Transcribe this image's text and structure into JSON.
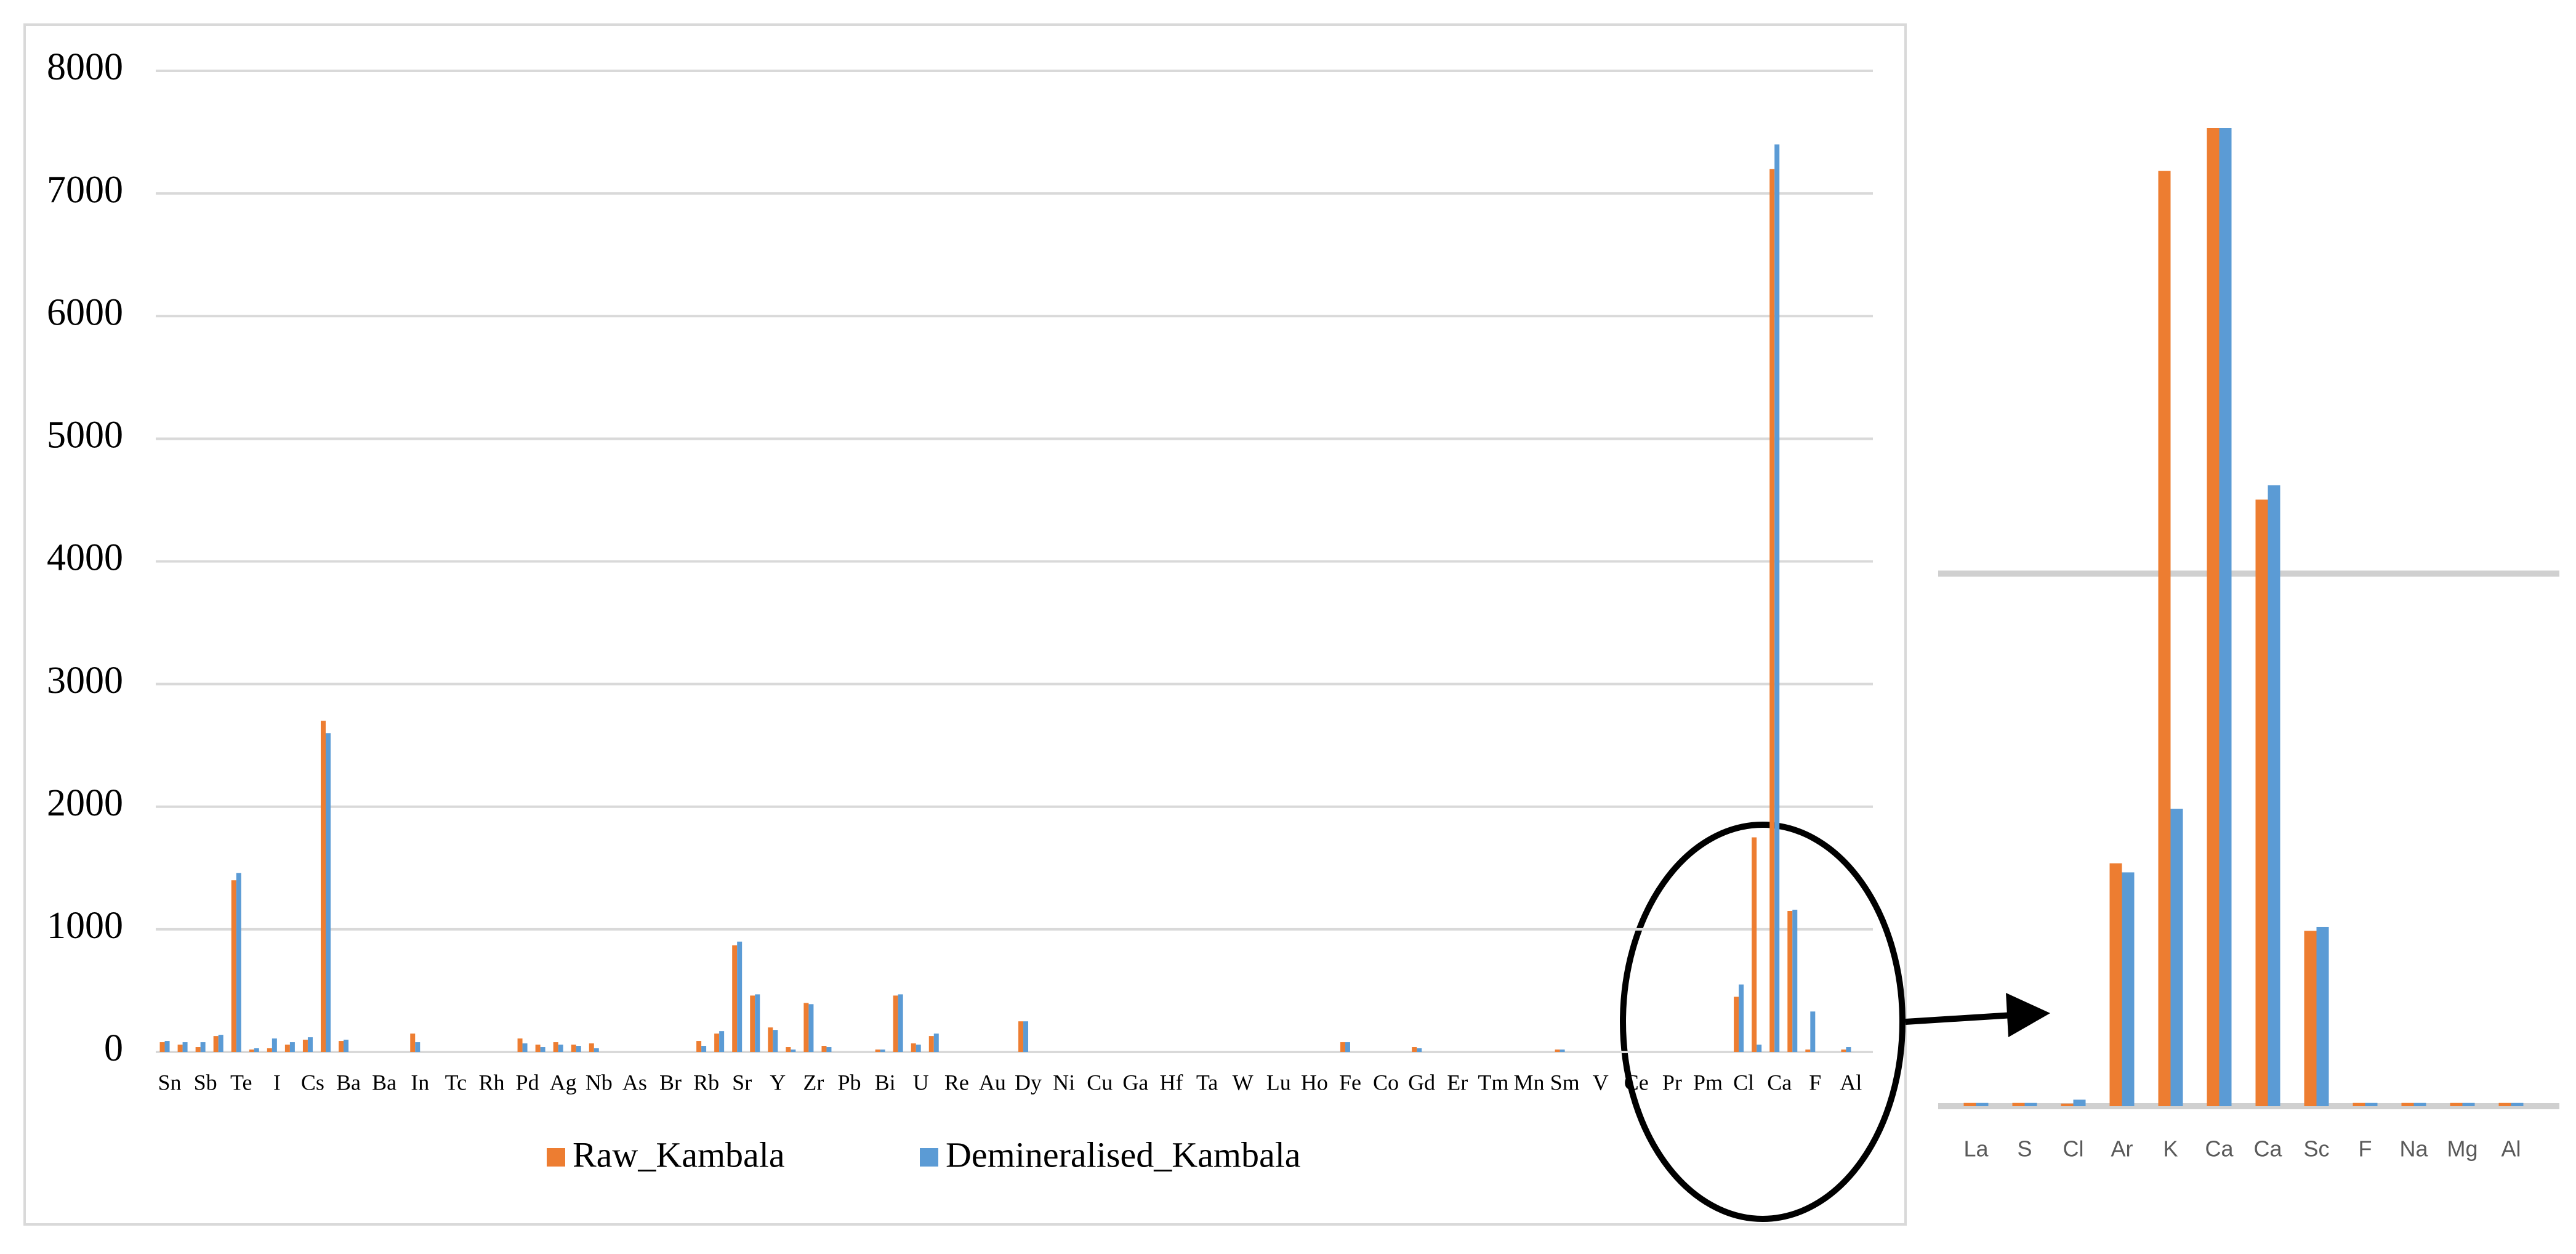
{
  "chart_data": [
    {
      "type": "bar",
      "categories": [
        "Sn",
        null,
        "Sb",
        null,
        "Te",
        null,
        "I",
        null,
        "Cs",
        null,
        "Ba",
        null,
        "Ba",
        null,
        "In",
        null,
        "Tc",
        null,
        "Rh",
        null,
        "Pd",
        null,
        "Ag",
        null,
        "Nb",
        null,
        "As",
        null,
        "Br",
        null,
        "Rb",
        null,
        "Sr",
        null,
        "Y",
        null,
        "Zr",
        null,
        "Pb",
        null,
        "Bi",
        null,
        "U",
        null,
        "Re",
        null,
        "Au",
        null,
        "Dy",
        null,
        "Ni",
        null,
        "Cu",
        null,
        "Ga",
        null,
        "Hf",
        null,
        "Ta",
        null,
        "W",
        null,
        "Lu",
        null,
        "Ho",
        null,
        "Fe",
        null,
        "Co",
        null,
        "Gd",
        null,
        "Er",
        null,
        "Tm",
        null,
        "Mn",
        null,
        "Sm",
        null,
        "V",
        null,
        "Ce",
        null,
        "Pr",
        null,
        "Pm",
        null,
        "Cl",
        null,
        "Ca",
        null,
        "F",
        null,
        "Al",
        null
      ],
      "series": [
        {
          "name": "Raw_Kambala",
          "color": "#ed7d31",
          "values": [
            80,
            60,
            40,
            130,
            1400,
            20,
            30,
            60,
            100,
            2700,
            90,
            0,
            0,
            0,
            150,
            0,
            0,
            0,
            0,
            0,
            110,
            60,
            80,
            60,
            70,
            0,
            0,
            0,
            0,
            0,
            90,
            150,
            870,
            460,
            200,
            40,
            400,
            50,
            0,
            0,
            20,
            460,
            70,
            130,
            0,
            0,
            0,
            0,
            250,
            0,
            0,
            0,
            0,
            0,
            0,
            0,
            0,
            0,
            0,
            0,
            0,
            0,
            0,
            0,
            0,
            0,
            80,
            0,
            0,
            0,
            40,
            0,
            0,
            0,
            0,
            0,
            0,
            0,
            20,
            0,
            0,
            0,
            0,
            0,
            0,
            0,
            0,
            0,
            450,
            1750,
            7200,
            1150,
            20,
            0,
            20,
            0
          ]
        },
        {
          "name": "Demineralised_Kambala",
          "color": "#5b9bd5",
          "values": [
            90,
            80,
            80,
            140,
            1460,
            30,
            110,
            80,
            120,
            2600,
            100,
            0,
            0,
            0,
            80,
            0,
            0,
            0,
            0,
            0,
            70,
            40,
            60,
            50,
            30,
            0,
            0,
            0,
            0,
            0,
            50,
            170,
            900,
            470,
            180,
            20,
            390,
            40,
            0,
            0,
            20,
            470,
            60,
            150,
            0,
            0,
            0,
            0,
            250,
            0,
            0,
            0,
            0,
            0,
            0,
            0,
            0,
            0,
            0,
            0,
            0,
            0,
            0,
            0,
            0,
            0,
            80,
            0,
            0,
            0,
            30,
            0,
            0,
            0,
            0,
            0,
            0,
            0,
            20,
            0,
            0,
            0,
            0,
            0,
            0,
            0,
            0,
            0,
            550,
            60,
            7400,
            1160,
            330,
            0,
            40,
            0
          ]
        }
      ],
      "ylim": [
        0,
        8000
      ],
      "yticks": [
        0,
        1000,
        2000,
        3000,
        4000,
        5000,
        6000,
        7000,
        8000
      ],
      "grid": true,
      "legend": "bottom"
    },
    {
      "type": "bar",
      "categories": [
        "La",
        "S",
        "Cl",
        "Ar",
        "K",
        "Ca",
        "Ca",
        "Sc",
        "F",
        "Na",
        "Mg",
        "Al"
      ],
      "series": [
        {
          "color": "#ed7d31",
          "values": [
            25,
            25,
            20,
            1870,
            7200,
            7700,
            4670,
            1350,
            25,
            25,
            25,
            25
          ]
        },
        {
          "color": "#5b9bd5",
          "values": [
            25,
            25,
            50,
            1800,
            2290,
            7700,
            4780,
            1380,
            25,
            25,
            25,
            25
          ]
        }
      ],
      "ylim": [
        0,
        7530
      ],
      "gridlines": [
        0,
        4100
      ]
    }
  ]
}
